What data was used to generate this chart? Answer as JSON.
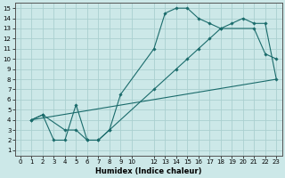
{
  "xlabel": "Humidex (Indice chaleur)",
  "background_color": "#cce8e8",
  "grid_color": "#aacfcf",
  "line_color": "#1a6b6b",
  "xlim": [
    -0.5,
    23.5
  ],
  "ylim": [
    0.5,
    15.5
  ],
  "xticks": [
    0,
    1,
    2,
    3,
    4,
    5,
    6,
    7,
    8,
    9,
    10,
    12,
    13,
    14,
    15,
    16,
    17,
    18,
    19,
    20,
    21,
    22,
    23
  ],
  "yticks": [
    1,
    2,
    3,
    4,
    5,
    6,
    7,
    8,
    9,
    10,
    11,
    12,
    13,
    14,
    15
  ],
  "line1_x": [
    1,
    2,
    3,
    4,
    5,
    6,
    7,
    8,
    9,
    12,
    13,
    14,
    15,
    16,
    17,
    18,
    21,
    22,
    23
  ],
  "line1_y": [
    4,
    4.5,
    2,
    2,
    5.5,
    2,
    2,
    3,
    6.5,
    11,
    14.5,
    15,
    15,
    14,
    13.5,
    13,
    13,
    10.5,
    10
  ],
  "line2_x": [
    1,
    2,
    4,
    5,
    6,
    7,
    8,
    12,
    14,
    15,
    16,
    17,
    18,
    19,
    20,
    21,
    22,
    23
  ],
  "line2_y": [
    4,
    4.5,
    3,
    3,
    2,
    2,
    3,
    7,
    9,
    10,
    11,
    12,
    13,
    13.5,
    14,
    13.5,
    13.5,
    8
  ],
  "line3_x": [
    1,
    23
  ],
  "line3_y": [
    4,
    8
  ],
  "tick_fontsize": 5,
  "xlabel_fontsize": 6,
  "linewidth": 0.8,
  "markersize": 1.8
}
